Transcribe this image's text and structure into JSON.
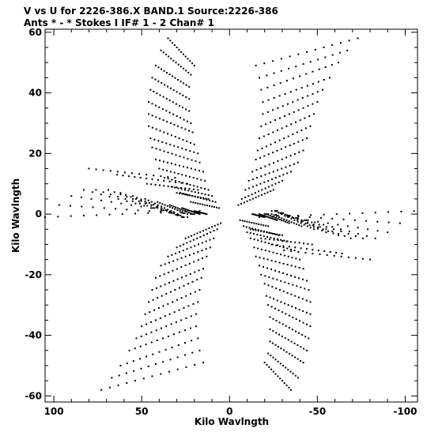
{
  "header": {
    "title_line1": "V vs U for 2226-386.X BAND.1   Source:2226-386",
    "title_line2": "Ants * - *    Stokes I  IF# 1 - 2  Chan# 1"
  },
  "chart_data": {
    "type": "scatter",
    "title": "V vs U for 2226-386.X BAND.1   Source:2226-386",
    "subtitle": "Ants * - *    Stokes I  IF# 1 - 2  Chan# 1",
    "xlabel": "Kilo Wavlngth",
    "ylabel": "Kilo Wavlngth",
    "xlim": [
      105,
      -107
    ],
    "ylim": [
      -62,
      61
    ],
    "x_reversed": true,
    "xticks": [
      100,
      50,
      0,
      -50,
      -100
    ],
    "xtick_labels": [
      "100",
      "50",
      "0",
      "-50",
      "-100"
    ],
    "yticks": [
      60,
      40,
      20,
      0,
      -20,
      -40,
      -60
    ],
    "ytick_labels": [
      "60",
      "40",
      "20",
      "0",
      "-20",
      "-40",
      "-60"
    ],
    "grid": false,
    "marker_color": "#000000",
    "tracks": {
      "description": "uv-coverage tracks, each a short arc segment between start and end (u,v) points in kilo-wavelengths; conjugate points (-u,-v) also plotted",
      "series": [
        {
          "values": [
            [
              35,
              58,
              20,
              49
            ],
            [
              39,
              54,
              22,
              46
            ],
            [
              42,
              49,
              23,
              42
            ],
            [
              44,
              45,
              23,
              38
            ],
            [
              45,
              41,
              23,
              34
            ],
            [
              46,
              37,
              22,
              30
            ],
            [
              46,
              33,
              21,
              27
            ],
            [
              46,
              29,
              20,
              23
            ],
            [
              45,
              25,
              18,
              20
            ],
            [
              44,
              22,
              17,
              17
            ],
            [
              42,
              18,
              15,
              14
            ],
            [
              40,
              15,
              14,
              11
            ],
            [
              37,
              12,
              12,
              8
            ],
            [
              33,
              9,
              10,
              6
            ],
            [
              28,
              7,
              8,
              4
            ],
            [
              22,
              4,
              6,
              2
            ]
          ]
        },
        {
          "values": [
            [
              -15,
              49,
              -73,
              58
            ],
            [
              -17,
              45,
              -67,
              54
            ],
            [
              -18,
              41,
              -62,
              50
            ],
            [
              -19,
              37,
              -57,
              45
            ],
            [
              -19,
              33,
              -53,
              41
            ],
            [
              -18,
              29,
              -50,
              37
            ],
            [
              -17,
              25,
              -48,
              33
            ],
            [
              -16,
              21,
              -46,
              29
            ],
            [
              -15,
              18,
              -44,
              25
            ],
            [
              -13,
              14,
              -42,
              21
            ],
            [
              -11,
              11,
              -39,
              17
            ],
            [
              -9,
              8,
              -35,
              14
            ],
            [
              -7,
              5,
              -30,
              11
            ],
            [
              -5,
              3,
              -25,
              8
            ]
          ]
        },
        {
          "values": [
            [
              -17,
              -1,
              -105,
              1
            ],
            [
              -20,
              0,
              -97,
              -3
            ],
            [
              -22,
              0,
              -90,
              -6
            ],
            [
              -24,
              1,
              -83,
              -8
            ],
            [
              -26,
              1,
              -76,
              -8
            ],
            [
              -27,
              1,
              -69,
              -8
            ],
            [
              -27,
              1,
              -62,
              -7
            ],
            [
              -27,
              1,
              -55,
              -6
            ],
            [
              -26,
              1,
              -48,
              -5
            ],
            [
              -24,
              0,
              -41,
              -4
            ],
            [
              -21,
              0,
              -34,
              -3
            ],
            [
              -17,
              0,
              -27,
              -2
            ],
            [
              -13,
              0,
              -20,
              -1
            ]
          ]
        },
        {
          "values": [
            [
              -12,
              -5,
              -30,
              -7
            ],
            [
              -18,
              -8,
              -47,
              -10
            ],
            [
              -24,
              -10,
              -64,
              -13
            ],
            [
              -31,
              -12,
              -80,
              -15
            ]
          ]
        }
      ]
    }
  }
}
